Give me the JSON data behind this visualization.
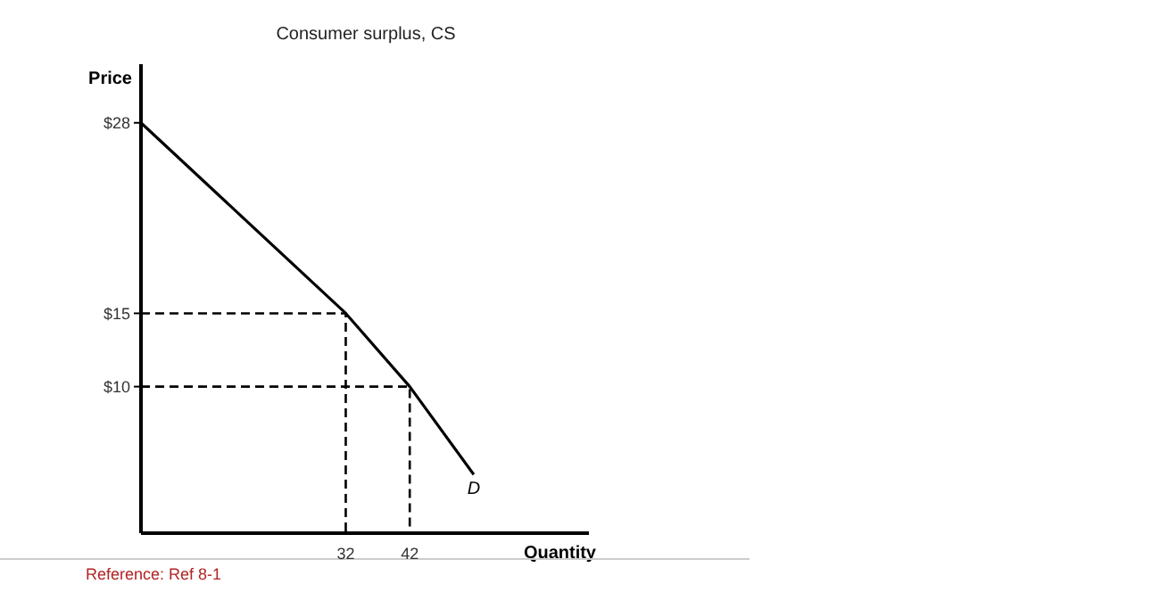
{
  "chart_data": {
    "type": "line",
    "title": "Consumer surplus, CS",
    "xlabel": "Quantity",
    "ylabel": "Price",
    "xlim": [
      0,
      70
    ],
    "ylim": [
      0,
      32
    ],
    "xticks": [
      32,
      42
    ],
    "yticks": [
      {
        "value": 10,
        "label": "$10"
      },
      {
        "value": 15,
        "label": "$15"
      },
      {
        "value": 28,
        "label": "$28"
      }
    ],
    "grid": false,
    "marker": "none",
    "series": [
      {
        "x": [
          0,
          32,
          42,
          52
        ],
        "values": [
          28,
          15,
          10,
          4
        ],
        "color": "#000000",
        "line_style": "solid"
      },
      {
        "x": [
          0,
          32,
          32
        ],
        "values": [
          15,
          15,
          0
        ],
        "color": "#000000",
        "line_style": "dashed"
      },
      {
        "x": [
          0,
          42,
          42
        ],
        "values": [
          10,
          10,
          0
        ],
        "color": "#000000",
        "line_style": "dashed"
      }
    ],
    "annotations": [
      {
        "text": "D",
        "x": 52,
        "y": 4
      },
      "Reference: Ref 8-1"
    ]
  }
}
